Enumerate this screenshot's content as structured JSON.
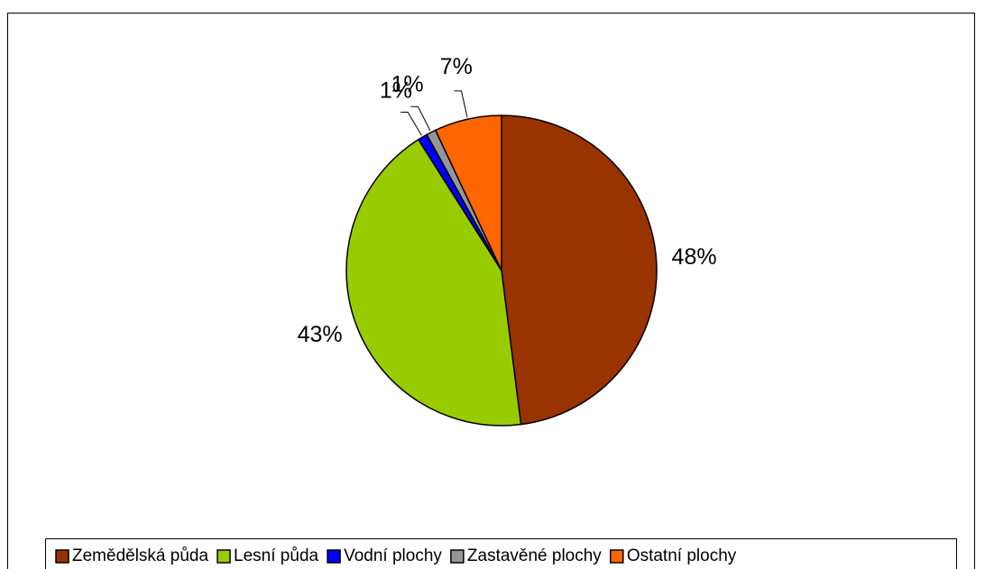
{
  "chart_data": {
    "type": "pie",
    "categories": [
      "Zemědělská půda",
      "Lesní půda",
      "Vodní plochy",
      "Zastavěné plochy",
      "Ostatní plochy"
    ],
    "values": [
      48,
      43,
      1,
      1,
      7
    ],
    "value_labels": [
      "48%",
      "43%",
      "1%",
      "1%",
      "7%"
    ],
    "colors": [
      "#993300",
      "#99cc00",
      "#0000ff",
      "#969696",
      "#ff6600"
    ],
    "legend": "bottom"
  }
}
